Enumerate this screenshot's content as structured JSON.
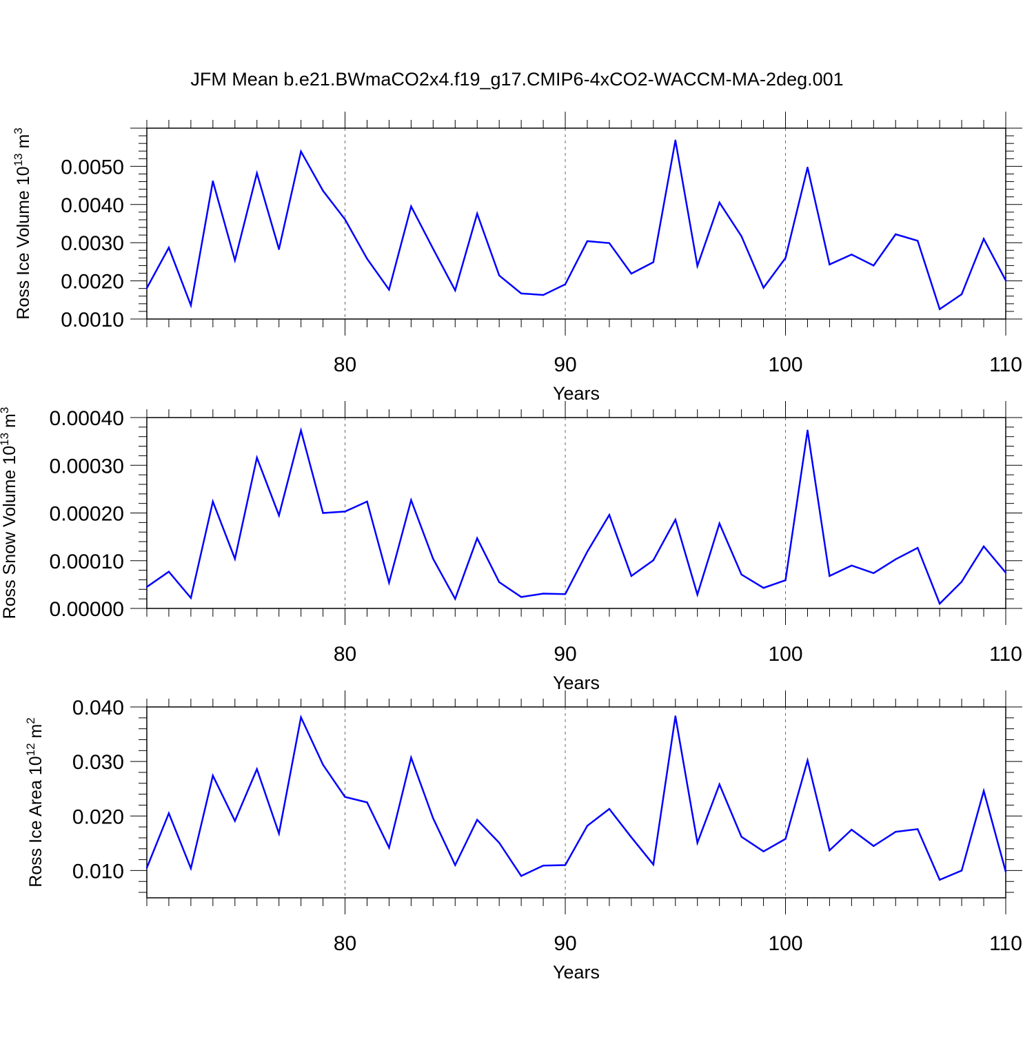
{
  "title": "JFM Mean b.e21.BWmaCO2x4.f19_g17.CMIP6-4xCO2-WACCM-MA-2deg.001",
  "colors": {
    "line": "#0000ff",
    "axis": "#000000",
    "gridline": "#666666"
  },
  "chart_data": [
    {
      "type": "line",
      "name": "ross-ice-volume",
      "ylabel": {
        "main": "Ross Ice Volume 10",
        "exp": "13",
        "unit": " m",
        "unit_exp": "3"
      },
      "xlabel": "Years",
      "xlim": [
        71,
        110
      ],
      "ylim": [
        0.001,
        0.006
      ],
      "xticks": [
        80,
        90,
        100,
        110
      ],
      "xtick_labels": [
        "80",
        "90",
        "100",
        "110"
      ],
      "yticks": [
        0.001,
        0.002,
        0.003,
        0.004,
        0.005
      ],
      "ytick_labels": [
        "0.0010",
        "0.0020",
        "0.0030",
        "0.0040",
        "0.0050"
      ],
      "x": [
        71,
        72,
        73,
        74,
        75,
        76,
        77,
        78,
        79,
        80,
        81,
        82,
        83,
        84,
        85,
        86,
        87,
        88,
        89,
        90,
        91,
        92,
        93,
        94,
        95,
        96,
        97,
        98,
        99,
        100,
        101,
        102,
        103,
        104,
        105,
        106,
        107,
        108,
        109,
        110
      ],
      "values": [
        0.00181,
        0.00287,
        0.00136,
        0.00461,
        0.00254,
        0.00482,
        0.00283,
        0.00539,
        0.00436,
        0.00361,
        0.00258,
        0.00177,
        0.00395,
        0.00284,
        0.00175,
        0.00376,
        0.00214,
        0.00167,
        0.00163,
        0.00191,
        0.00304,
        0.00299,
        0.00219,
        0.00249,
        0.00568,
        0.00239,
        0.00405,
        0.00317,
        0.00182,
        0.0026,
        0.00497,
        0.00243,
        0.00269,
        0.0024,
        0.00322,
        0.00305,
        0.00126,
        0.00165,
        0.0031,
        0.00201
      ]
    },
    {
      "type": "line",
      "name": "ross-snow-volume",
      "ylabel": {
        "main": "Ross Snow Volume 10",
        "exp": "13",
        "unit": " m",
        "unit_exp": "3"
      },
      "xlabel": "Years",
      "xlim": [
        71,
        110
      ],
      "ylim": [
        0.0,
        0.0004
      ],
      "xticks": [
        80,
        90,
        100,
        110
      ],
      "xtick_labels": [
        "80",
        "90",
        "100",
        "110"
      ],
      "yticks": [
        0.0,
        0.0001,
        0.0002,
        0.0003,
        0.0004
      ],
      "ytick_labels": [
        "0.00000",
        "0.00010",
        "0.00020",
        "0.00030",
        "0.00040"
      ],
      "x": [
        71,
        72,
        73,
        74,
        75,
        76,
        77,
        78,
        79,
        80,
        81,
        82,
        83,
        84,
        85,
        86,
        87,
        88,
        89,
        90,
        91,
        92,
        93,
        94,
        95,
        96,
        97,
        98,
        99,
        100,
        101,
        102,
        103,
        104,
        105,
        106,
        107,
        108,
        109,
        110
      ],
      "values": [
        4.5e-05,
        7.7e-05,
        2.2e-05,
        0.000224,
        0.000104,
        0.000316,
        0.000195,
        0.000373,
        0.0002,
        0.000203,
        0.000224,
        5.4e-05,
        0.000227,
        0.000104,
        2e-05,
        0.000147,
        5.5e-05,
        2.4e-05,
        3.1e-05,
        3e-05,
        0.000119,
        0.000196,
        6.8e-05,
        0.000101,
        0.000186,
        2.9e-05,
        0.000178,
        7.1e-05,
        4.3e-05,
        5.9e-05,
        0.000373,
        6.8e-05,
        9e-05,
        7.4e-05,
        0.000103,
        0.000127,
        1e-05,
        5.6e-05,
        0.00013,
        7.5e-05
      ]
    },
    {
      "type": "line",
      "name": "ross-ice-area",
      "ylabel": {
        "main": "Ross Ice Area 10",
        "exp": "12",
        "unit": " m",
        "unit_exp": "2"
      },
      "xlabel": "Years",
      "xlim": [
        71,
        110
      ],
      "ylim": [
        0.005,
        0.04
      ],
      "xticks": [
        80,
        90,
        100,
        110
      ],
      "xtick_labels": [
        "80",
        "90",
        "100",
        "110"
      ],
      "yticks": [
        0.01,
        0.02,
        0.03,
        0.04
      ],
      "ytick_labels": [
        "0.010",
        "0.020",
        "0.030",
        "0.040"
      ],
      "x": [
        71,
        72,
        73,
        74,
        75,
        76,
        77,
        78,
        79,
        80,
        81,
        82,
        83,
        84,
        85,
        86,
        87,
        88,
        89,
        90,
        91,
        92,
        93,
        94,
        95,
        96,
        97,
        98,
        99,
        100,
        101,
        102,
        103,
        104,
        105,
        106,
        107,
        108,
        109,
        110
      ],
      "values": [
        0.0105,
        0.0205,
        0.0104,
        0.0274,
        0.0191,
        0.0286,
        0.0168,
        0.0381,
        0.0294,
        0.0235,
        0.0225,
        0.0142,
        0.0307,
        0.0196,
        0.011,
        0.0193,
        0.0151,
        0.009,
        0.0109,
        0.011,
        0.0182,
        0.0213,
        0.0161,
        0.0111,
        0.0383,
        0.0151,
        0.0258,
        0.0162,
        0.0135,
        0.0158,
        0.0302,
        0.0137,
        0.0175,
        0.0145,
        0.0171,
        0.0176,
        0.0083,
        0.01,
        0.0246,
        0.0098
      ]
    }
  ]
}
